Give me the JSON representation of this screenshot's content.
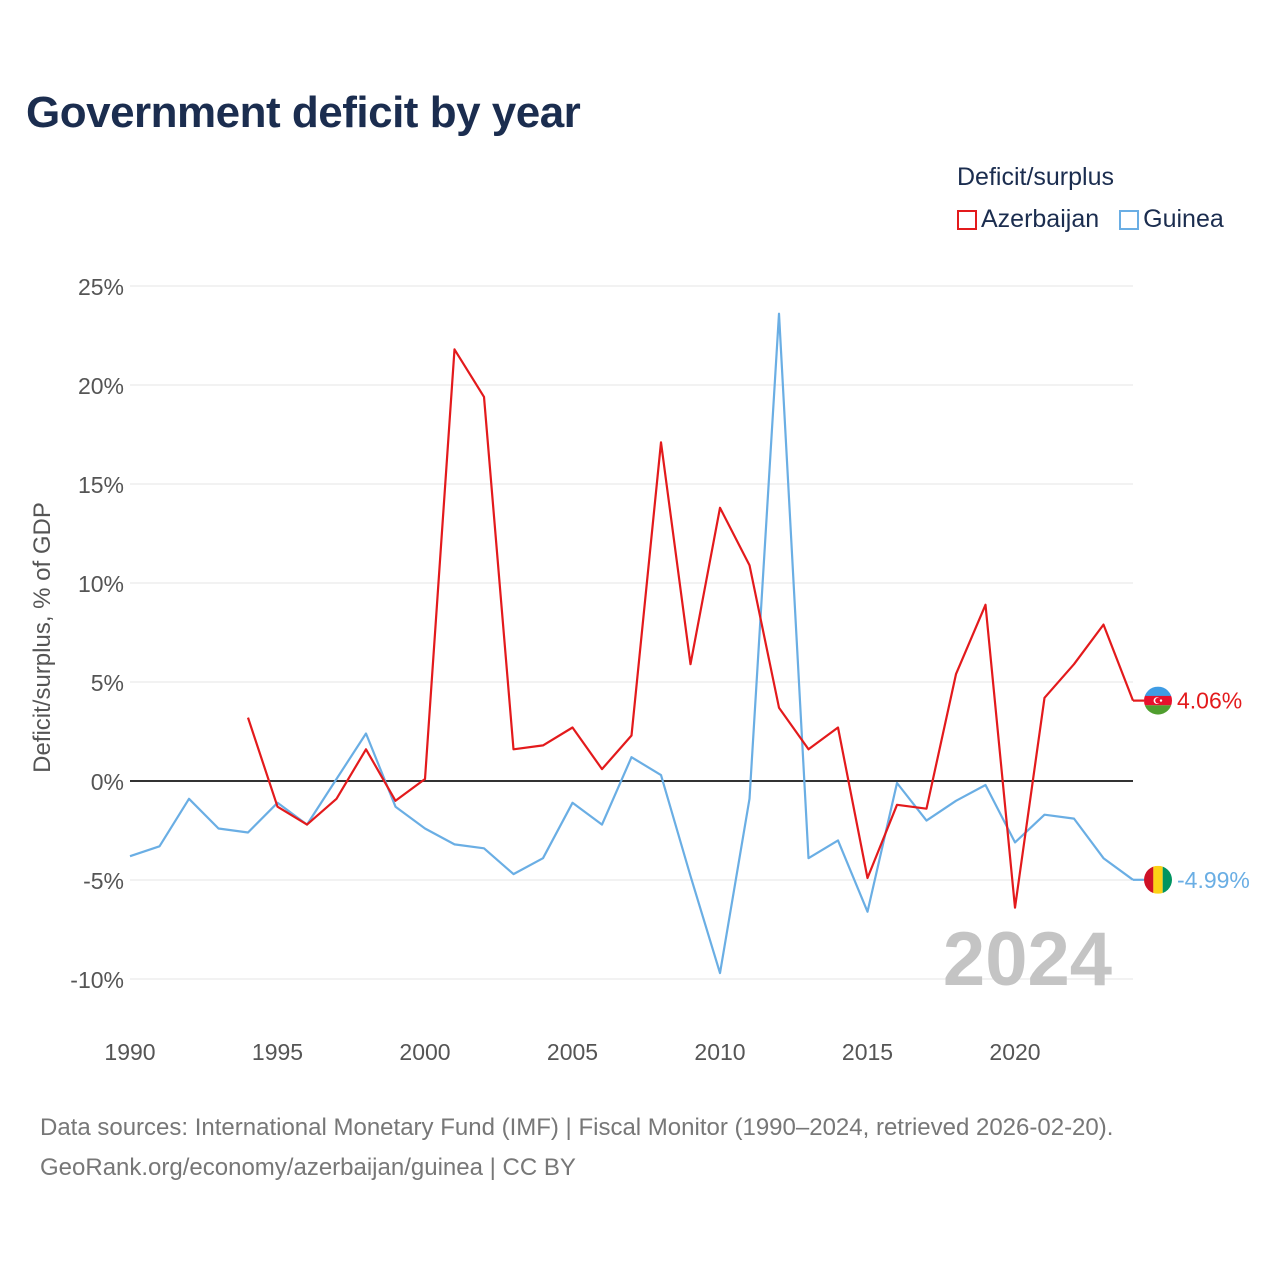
{
  "title": "Government deficit by year",
  "legend": {
    "title": "Deficit/surplus",
    "items": [
      {
        "name": "Azerbaijan",
        "color": "#e31a1c"
      },
      {
        "name": "Guinea",
        "color": "#6aaee4"
      }
    ]
  },
  "source": {
    "line1": "Data sources: International Monetary Fund (IMF) | Fiscal Monitor (1990–2024, retrieved 2026-02-20).",
    "line2": "GeoRank.org/economy/azerbaijan/guinea | CC BY"
  },
  "chart_data": {
    "type": "line",
    "title": "Government deficit by year",
    "xlabel": "",
    "ylabel": "Deficit/surplus, % of GDP",
    "xlim": [
      1990,
      2024
    ],
    "ylim": [
      -12,
      25
    ],
    "x_ticks": [
      1990,
      1995,
      2000,
      2005,
      2010,
      2015,
      2020
    ],
    "x_tick_labels": [
      "1990",
      "1995",
      "2000",
      "2005",
      "2010",
      "2015",
      "2020"
    ],
    "y_ticks": [
      -10,
      -5,
      0,
      5,
      10,
      15,
      20,
      25
    ],
    "y_tick_labels": [
      "-10%",
      "-5%",
      "0%",
      "5%",
      "10%",
      "15%",
      "20%",
      "25%"
    ],
    "year_watermark": "2024",
    "grid": true,
    "legend_position": "top-right",
    "series": [
      {
        "name": "Azerbaijan",
        "color": "#e31a1c",
        "end_label": "4.06%",
        "flag": "azerbaijan",
        "points": [
          [
            1994,
            3.2
          ],
          [
            1995,
            -1.3
          ],
          [
            1996,
            -2.2
          ],
          [
            1997,
            -0.9
          ],
          [
            1998,
            1.6
          ],
          [
            1999,
            -1.0
          ],
          [
            2000,
            0.1
          ],
          [
            2001,
            21.8
          ],
          [
            2002,
            19.4
          ],
          [
            2003,
            1.6
          ],
          [
            2004,
            1.8
          ],
          [
            2005,
            2.7
          ],
          [
            2006,
            0.6
          ],
          [
            2007,
            2.3
          ],
          [
            2008,
            17.1
          ],
          [
            2009,
            5.9
          ],
          [
            2010,
            13.8
          ],
          [
            2011,
            10.9
          ],
          [
            2012,
            3.7
          ],
          [
            2013,
            1.6
          ],
          [
            2014,
            2.7
          ],
          [
            2015,
            -4.9
          ],
          [
            2016,
            -1.2
          ],
          [
            2017,
            -1.4
          ],
          [
            2018,
            5.4
          ],
          [
            2019,
            8.9
          ],
          [
            2020,
            -6.4
          ],
          [
            2021,
            4.2
          ],
          [
            2022,
            5.9
          ],
          [
            2023,
            7.9
          ],
          [
            2024,
            4.06
          ]
        ]
      },
      {
        "name": "Guinea",
        "color": "#6aaee4",
        "end_label": "-4.99%",
        "flag": "guinea",
        "points": [
          [
            1990,
            -3.8
          ],
          [
            1991,
            -3.3
          ],
          [
            1992,
            -0.9
          ],
          [
            1993,
            -2.4
          ],
          [
            1994,
            -2.6
          ],
          [
            1995,
            -1.1
          ],
          [
            1996,
            -2.2
          ],
          [
            1997,
            0.1
          ],
          [
            1998,
            2.4
          ],
          [
            1999,
            -1.3
          ],
          [
            2000,
            -2.4
          ],
          [
            2001,
            -3.2
          ],
          [
            2002,
            -3.4
          ],
          [
            2003,
            -4.7
          ],
          [
            2004,
            -3.9
          ],
          [
            2005,
            -1.1
          ],
          [
            2006,
            -2.2
          ],
          [
            2007,
            1.2
          ],
          [
            2008,
            0.3
          ],
          [
            2009,
            -4.8
          ],
          [
            2010,
            -9.7
          ],
          [
            2011,
            -0.9
          ],
          [
            2012,
            23.6
          ],
          [
            2013,
            -3.9
          ],
          [
            2014,
            -3.0
          ],
          [
            2015,
            -6.6
          ],
          [
            2016,
            -0.1
          ],
          [
            2017,
            -2.0
          ],
          [
            2018,
            -1.0
          ],
          [
            2019,
            -0.2
          ],
          [
            2020,
            -3.1
          ],
          [
            2021,
            -1.7
          ],
          [
            2022,
            -1.9
          ],
          [
            2023,
            -3.9
          ],
          [
            2024,
            -4.99
          ]
        ]
      }
    ]
  }
}
